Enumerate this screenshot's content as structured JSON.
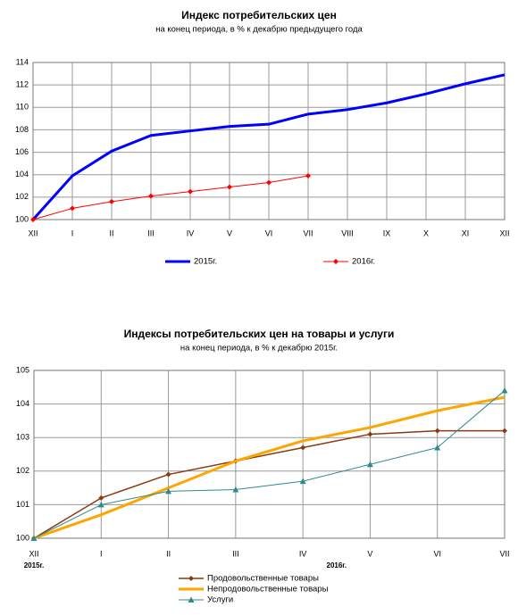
{
  "chart_data": [
    {
      "type": "line",
      "title": "Индекс потребительских цен",
      "subtitle": "на конец периода, в % к декабрю предыдущего года",
      "categories": [
        "XII",
        "I",
        "II",
        "III",
        "IV",
        "V",
        "VI",
        "VII",
        "VIII",
        "IX",
        "X",
        "XI",
        "XII"
      ],
      "series": [
        {
          "name": "2015г.",
          "color": "#0000ff",
          "line_width": 3,
          "marker": "none",
          "values": [
            100,
            103.9,
            106.1,
            107.5,
            107.9,
            108.3,
            108.5,
            109.4,
            109.8,
            110.4,
            111.2,
            112.1,
            112.9
          ]
        },
        {
          "name": "2016г.",
          "color": "#ff0000",
          "line_width": 1,
          "marker": "diamond",
          "values": [
            100,
            101.0,
            101.6,
            102.1,
            102.5,
            102.9,
            103.3,
            103.9,
            null,
            null,
            null,
            null,
            null
          ]
        }
      ],
      "ylim": [
        100,
        114
      ],
      "yticks": [
        100,
        102,
        104,
        106,
        108,
        110,
        112,
        114
      ],
      "grid": true,
      "legend": "bottom"
    },
    {
      "type": "line",
      "title": "Индексы потребительских цен на товары и  услуги",
      "subtitle": "на конец периода, в % к декабрю 2015г.",
      "categories": [
        "XII",
        "I",
        "II",
        "III",
        "IV",
        "V",
        "VI",
        "VII"
      ],
      "annotations": [
        "2015г.",
        "2016г."
      ],
      "series": [
        {
          "name": "Продовольственные товары",
          "color": "#8b3a0f",
          "line_width": 1.5,
          "marker": "diamond",
          "values": [
            100,
            101.2,
            101.9,
            102.3,
            102.7,
            103.1,
            103.2,
            103.2
          ]
        },
        {
          "name": "Непродовольственные товары",
          "color": "#ffa500",
          "line_width": 3,
          "marker": "none",
          "values": [
            100,
            100.7,
            101.5,
            102.3,
            102.9,
            103.3,
            103.8,
            104.2
          ]
        },
        {
          "name": "Услуги",
          "color": "#2e8b8b",
          "line_width": 1,
          "marker": "triangle",
          "values": [
            100,
            101.0,
            101.4,
            101.45,
            101.7,
            102.2,
            102.7,
            104.4
          ]
        }
      ],
      "ylim": [
        100,
        105
      ],
      "yticks": [
        100,
        101,
        102,
        103,
        104,
        105
      ],
      "grid": true,
      "legend": "bottom"
    }
  ]
}
